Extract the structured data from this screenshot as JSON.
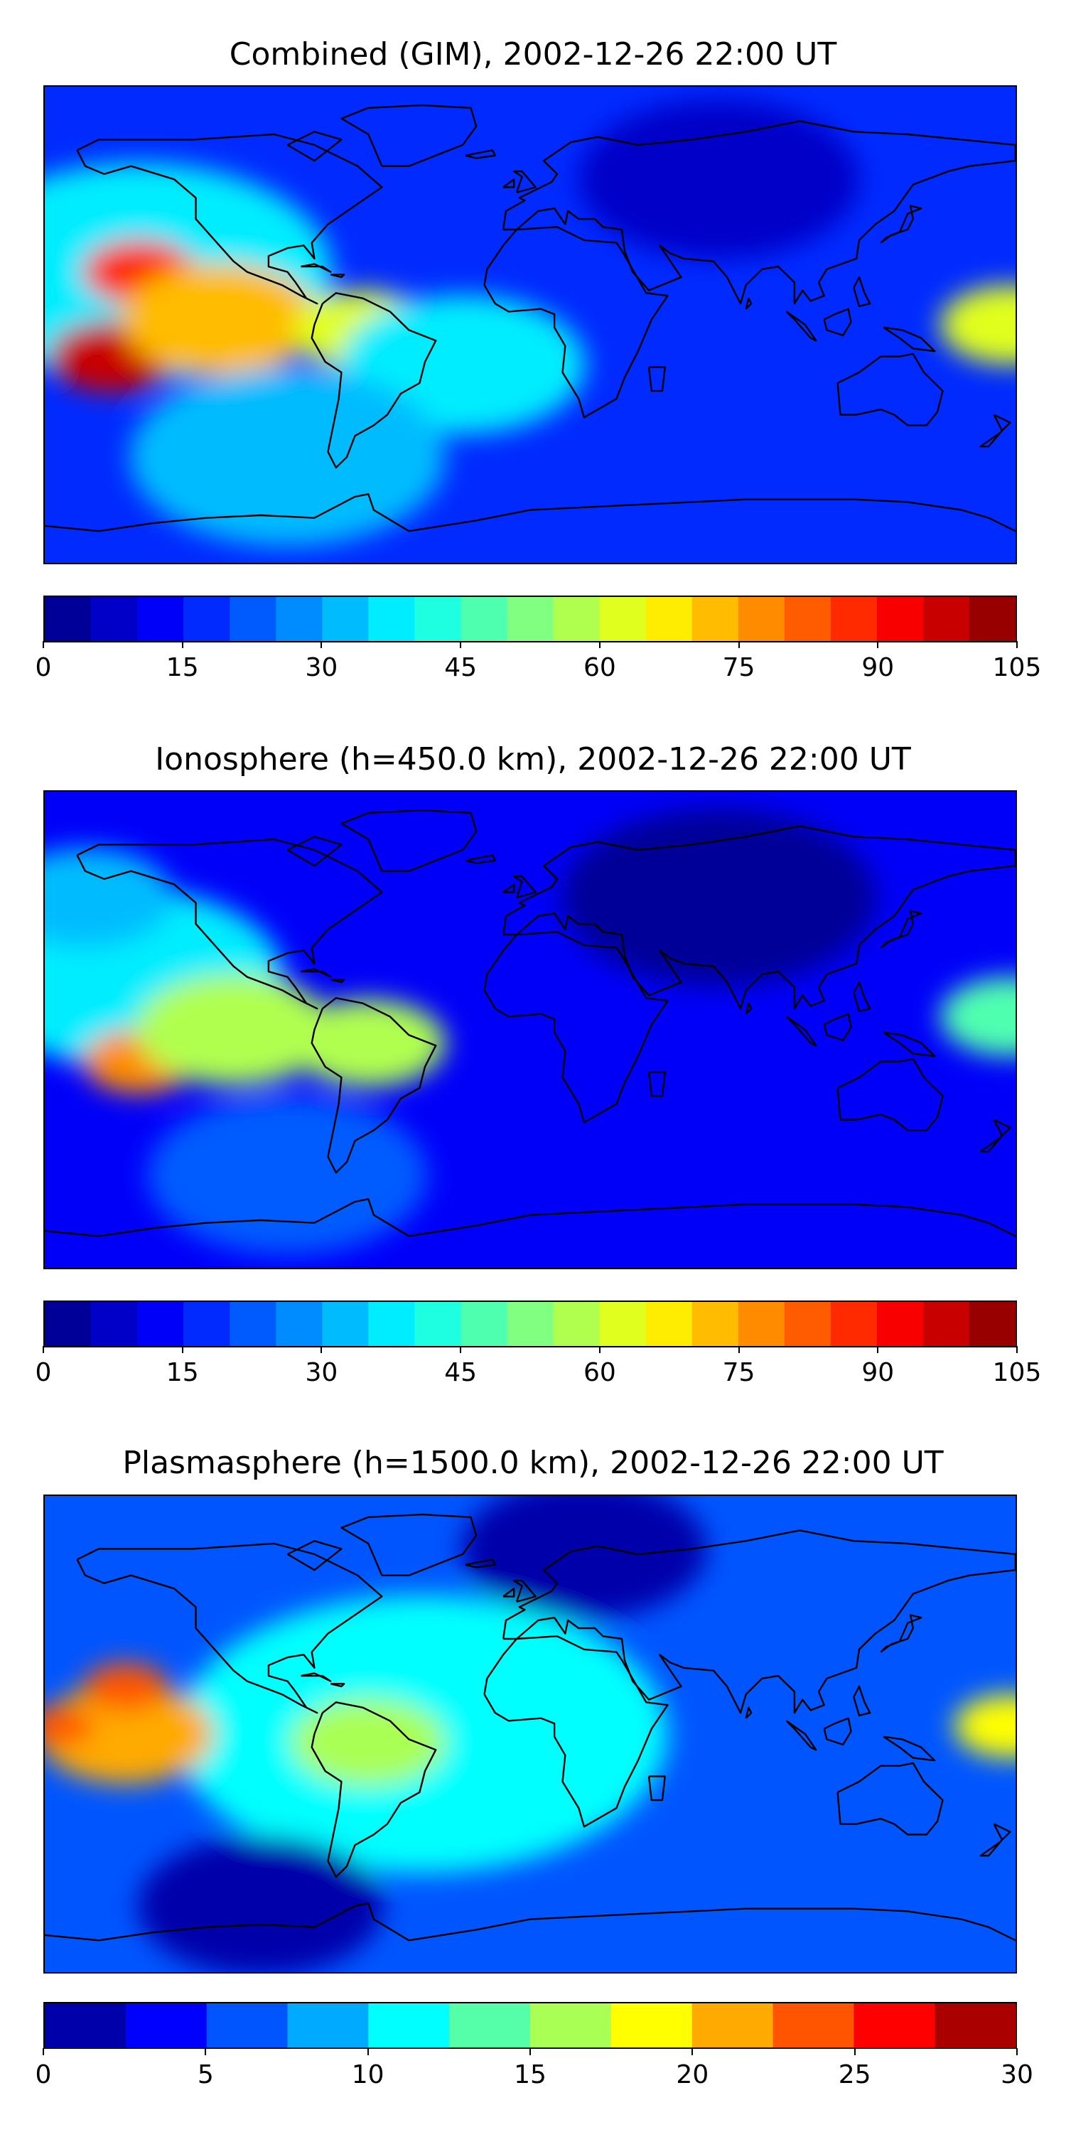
{
  "chart_data": [
    {
      "type": "heatmap",
      "title": "Combined (GIM), 2002-12-26 22:00 UT",
      "colormap": "jet",
      "colorbar": {
        "min": 0,
        "max": 105,
        "step": 5,
        "ticks": [
          "0",
          "15",
          "30",
          "45",
          "60",
          "75",
          "90",
          "105"
        ]
      },
      "background": 18,
      "features": [
        {
          "region": "North Pacific / North America",
          "lon": -145,
          "lat": 20,
          "value": 35,
          "spread": 55
        },
        {
          "region": "Central Pacific peak",
          "lon": -155,
          "lat": -12,
          "value": 97,
          "spread": 18
        },
        {
          "region": "NE Pacific peak",
          "lon": -145,
          "lat": 20,
          "value": 88,
          "spread": 16
        },
        {
          "region": "Equatorial East Pacific",
          "lon": -115,
          "lat": 2,
          "value": 72,
          "spread": 28
        },
        {
          "region": "Northern South America",
          "lon": -62,
          "lat": -2,
          "value": 64,
          "spread": 20
        },
        {
          "region": "South Atlantic",
          "lon": -25,
          "lat": -15,
          "value": 38,
          "spread": 35
        },
        {
          "region": "Western Pacific",
          "lon": 178,
          "lat": 0,
          "value": 60,
          "spread": 20
        },
        {
          "region": "Eurasia",
          "lon": 70,
          "lat": 55,
          "value": 6,
          "spread": 40
        },
        {
          "region": "Southern mid-latitudes",
          "lon": -90,
          "lat": -50,
          "value": 30,
          "spread": 45
        }
      ]
    },
    {
      "type": "heatmap",
      "title": "Ionosphere  (h=450.0 km), 2002-12-26 22:00 UT",
      "colormap": "jet",
      "colorbar": {
        "min": 0,
        "max": 105,
        "step": 5,
        "ticks": [
          "0",
          "15",
          "30",
          "45",
          "60",
          "75",
          "90",
          "105"
        ]
      },
      "background": 12,
      "features": [
        {
          "region": "North Pacific",
          "lon": -150,
          "lat": 20,
          "value": 38,
          "spread": 45
        },
        {
          "region": "Central Pacific peak",
          "lon": -145,
          "lat": -12,
          "value": 76,
          "spread": 16
        },
        {
          "region": "Equatorial East Pacific",
          "lon": -110,
          "lat": 0,
          "value": 58,
          "spread": 28
        },
        {
          "region": "Northern South America",
          "lon": -60,
          "lat": -5,
          "value": 57,
          "spread": 22
        },
        {
          "region": "North Pacific high lat",
          "lon": -165,
          "lat": 50,
          "value": 30,
          "spread": 25
        },
        {
          "region": "Western Pacific",
          "lon": 178,
          "lat": 5,
          "value": 45,
          "spread": 20
        },
        {
          "region": "Eurasia",
          "lon": 70,
          "lat": 50,
          "value": 2,
          "spread": 45
        },
        {
          "region": "Southern mid-latitudes",
          "lon": -90,
          "lat": -55,
          "value": 22,
          "spread": 40
        }
      ]
    },
    {
      "type": "heatmap",
      "title": "Plasmasphere (h=1500.0 km), 2002-12-26 22:00 UT",
      "colormap": "jet",
      "colorbar": {
        "min": 0,
        "max": 30,
        "step": 2.5,
        "ticks": [
          "0",
          "5",
          "10",
          "15",
          "20",
          "25",
          "30"
        ]
      },
      "background": 5,
      "features": [
        {
          "region": "Tropics band",
          "lon": -40,
          "lat": 0,
          "value": 10.5,
          "spread": 70
        },
        {
          "region": "East Pacific",
          "lon": -150,
          "lat": 0,
          "value": 21.5,
          "spread": 25
        },
        {
          "region": "East Pacific peak",
          "lon": -150,
          "lat": 18,
          "value": 24,
          "spread": 12
        },
        {
          "region": "West of Pacific peak",
          "lon": -175,
          "lat": 3,
          "value": 23.5,
          "spread": 10
        },
        {
          "region": "Northern South America",
          "lon": -60,
          "lat": -3,
          "value": 17,
          "spread": 22
        },
        {
          "region": "Western Pacific",
          "lon": 178,
          "lat": 3,
          "value": 18,
          "spread": 16
        },
        {
          "region": "Northern high latitudes",
          "lon": 20,
          "lat": 70,
          "value": 1.5,
          "spread": 35
        },
        {
          "region": "Southern high latitudes",
          "lon": -100,
          "lat": -65,
          "value": 2,
          "spread": 35
        }
      ]
    }
  ]
}
